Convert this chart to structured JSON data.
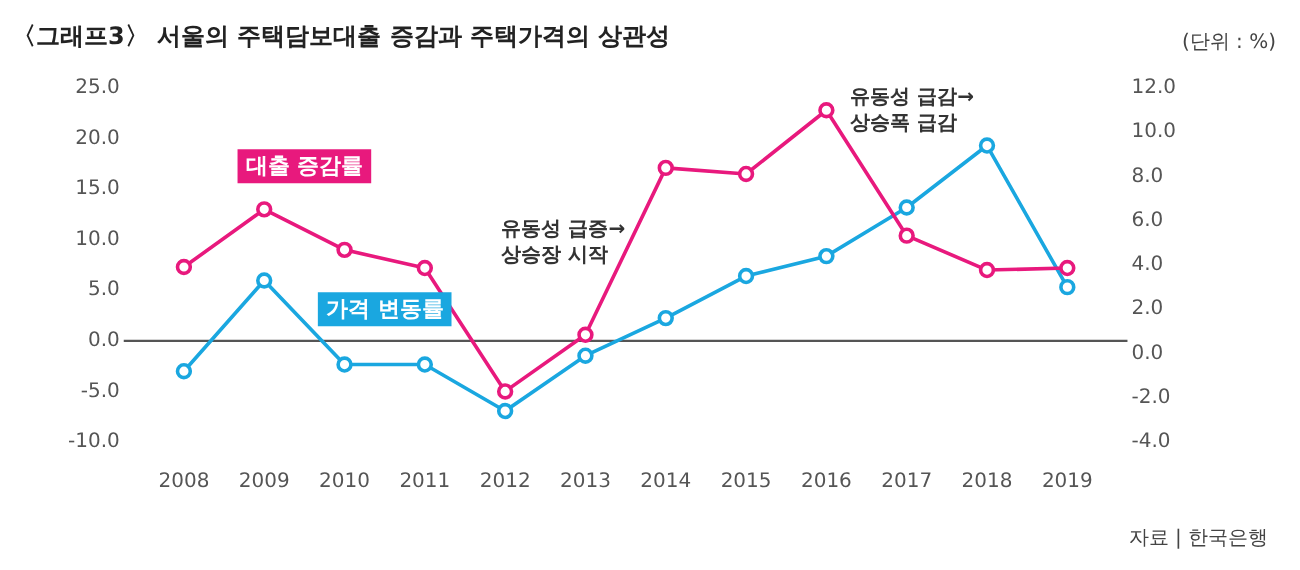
{
  "chart_data": {
    "type": "line",
    "title": "〈그래프3〉 서울의 주택담보대출 증감과 주택가격의 상관성",
    "subtitle": "(단위 : %)",
    "categories": [
      "2008",
      "2009",
      "2010",
      "2011",
      "2012",
      "2013",
      "2014",
      "2015",
      "2016",
      "2017",
      "2018",
      "2019"
    ],
    "series": [
      {
        "name": "대출 증감률",
        "color": "#e8197d",
        "values": [
          7.3,
          13.0,
          9.0,
          7.2,
          -5.0,
          0.6,
          17.1,
          16.5,
          22.8,
          10.4,
          7.0,
          7.2
        ]
      },
      {
        "name": "가격 변동률",
        "color": "#1aa7e0",
        "axis": "y2",
        "values": [
          -0.8,
          3.3,
          -0.5,
          -0.5,
          -2.6,
          -0.1,
          1.6,
          3.5,
          4.4,
          6.6,
          9.4,
          3.0
        ]
      }
    ],
    "ylim": [
      -10,
      25
    ],
    "yticks": [
      {
        "value": 25,
        "label": "25.0"
      },
      {
        "value": 20,
        "label": "20.0"
      },
      {
        "value": 15,
        "label": "15.0"
      },
      {
        "value": 10,
        "label": "10.0"
      },
      {
        "value": 5,
        "label": "5.0"
      },
      {
        "value": 0,
        "label": "0.0"
      },
      {
        "value": -5,
        "label": "-5.0"
      },
      {
        "value": -10,
        "label": "-10.0"
      }
    ],
    "y2lim": [
      -4,
      12
    ],
    "y2ticks": [
      {
        "value": 12,
        "label": "12.0"
      },
      {
        "value": 10,
        "label": "10.0"
      },
      {
        "value": 8,
        "label": "8.0"
      },
      {
        "value": 6,
        "label": "6.0"
      },
      {
        "value": 4,
        "label": "4.0"
      },
      {
        "value": 2,
        "label": "2.0"
      },
      {
        "value": 0,
        "label": "0.0"
      },
      {
        "value": -2,
        "label": "-2.0"
      },
      {
        "value": -4,
        "label": "-4.0"
      }
    ],
    "ref_lines": [
      {
        "axis": "y",
        "value": 0,
        "color": "#555555"
      }
    ],
    "annotations": [
      "유동성 급증→\n상승장 시작",
      "유동성 급감→\n상승폭 급감",
      "자료 | 한국은행"
    ],
    "grid": false,
    "legend": false,
    "marker": "circle",
    "line_style": "solid"
  }
}
